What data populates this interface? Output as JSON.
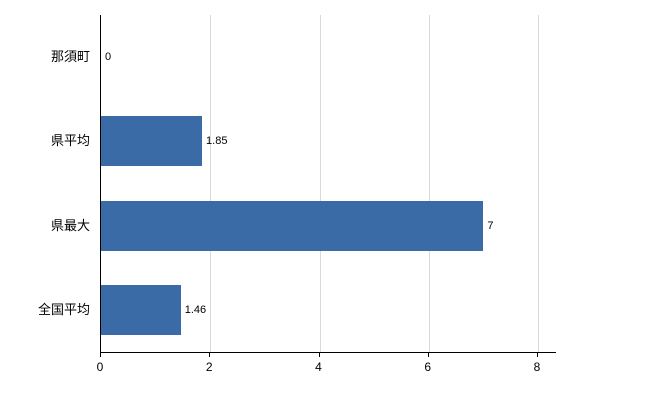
{
  "chart_data": {
    "type": "bar",
    "orientation": "horizontal",
    "title": "",
    "categories": [
      "那須町",
      "県平均",
      "県最大",
      "全国平均"
    ],
    "values": [
      0,
      1.85,
      7,
      1.46
    ],
    "value_labels": [
      "0",
      "1.85",
      "7",
      "1.46"
    ],
    "xlim": [
      0,
      8
    ],
    "xticks": [
      0,
      2,
      4,
      6,
      8
    ],
    "xtick_labels": [
      "0",
      "2",
      "4",
      "6",
      "8"
    ],
    "grid": true,
    "legend": "none",
    "bar_color": "#3a6ba6",
    "gridline_color": "#d9d9d9",
    "axis_color": "#000000",
    "background_color": "#ffffff"
  }
}
